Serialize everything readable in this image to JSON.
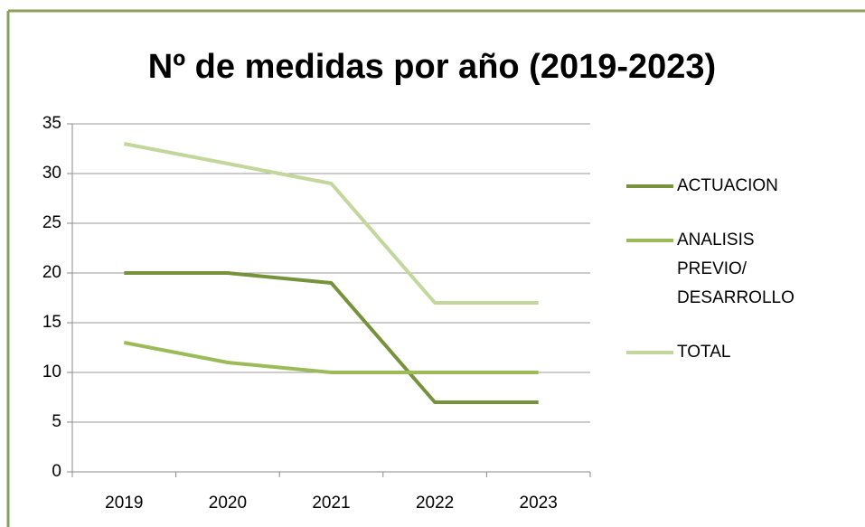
{
  "chart_data": {
    "type": "line",
    "title": "Nº de medidas por año (2019-2023)",
    "categories": [
      "2019",
      "2020",
      "2021",
      "2022",
      "2023"
    ],
    "series": [
      {
        "name": "ACTUACION",
        "color": "#76933c",
        "values": [
          20,
          20,
          19,
          7,
          7
        ]
      },
      {
        "name": "ANALISIS PREVIO/ DESARROLLO",
        "color": "#9bbb59",
        "values": [
          13,
          11,
          10,
          10,
          10
        ]
      },
      {
        "name": "TOTAL",
        "color": "#c3d69b",
        "values": [
          33,
          31,
          29,
          17,
          17
        ]
      }
    ],
    "ylim": [
      0,
      35
    ],
    "yticks": [
      0,
      5,
      10,
      15,
      20,
      25,
      30,
      35
    ],
    "grid": true,
    "legend": "right"
  }
}
